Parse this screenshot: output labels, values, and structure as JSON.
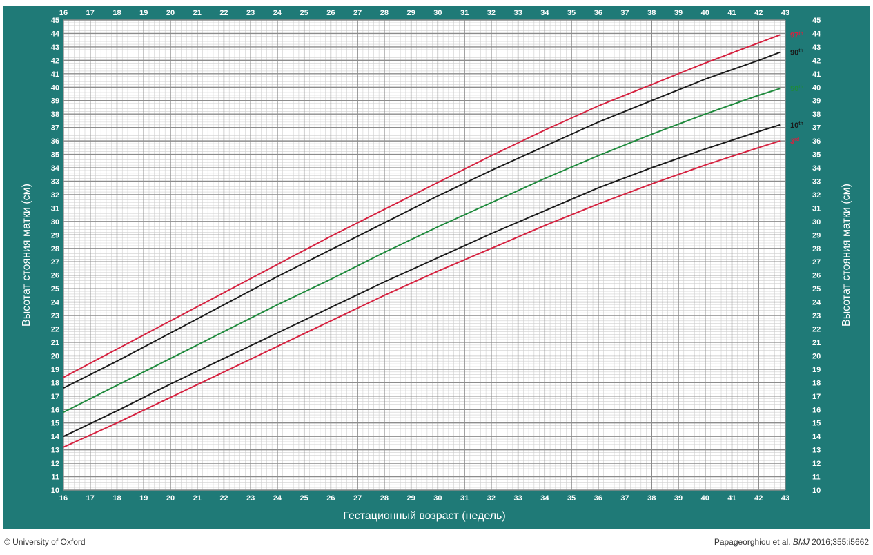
{
  "chart_data": {
    "type": "line",
    "xlabel": "Гестационный возраст (недель)",
    "ylabel": "Высотат стояния матки (см)",
    "xlim": [
      16,
      43
    ],
    "ylim": [
      10,
      45
    ],
    "x_ticks": [
      16,
      17,
      18,
      19,
      20,
      21,
      22,
      23,
      24,
      25,
      26,
      27,
      28,
      29,
      30,
      31,
      32,
      33,
      34,
      35,
      36,
      37,
      38,
      39,
      40,
      41,
      42,
      43
    ],
    "y_ticks": [
      10,
      11,
      12,
      13,
      14,
      15,
      16,
      17,
      18,
      19,
      20,
      21,
      22,
      23,
      24,
      25,
      26,
      27,
      28,
      29,
      30,
      31,
      32,
      33,
      34,
      35,
      36,
      37,
      38,
      39,
      40,
      41,
      42,
      43,
      44,
      45
    ],
    "x": [
      16,
      18,
      20,
      22,
      24,
      26,
      28,
      30,
      32,
      34,
      36,
      38,
      40,
      42,
      42.8
    ],
    "series": [
      {
        "name": "97th",
        "label_main": "97",
        "label_sup": "th",
        "color": "#d6213f",
        "values": [
          18.4,
          20.5,
          22.6,
          24.7,
          26.8,
          28.9,
          30.9,
          32.9,
          34.9,
          36.8,
          38.6,
          40.2,
          41.8,
          43.3,
          43.9
        ]
      },
      {
        "name": "90th",
        "label_main": "90",
        "label_sup": "th",
        "color": "#1a1a1a",
        "values": [
          17.6,
          19.6,
          21.7,
          23.8,
          25.9,
          27.9,
          29.9,
          31.9,
          33.8,
          35.6,
          37.4,
          39.0,
          40.6,
          42.0,
          42.6
        ]
      },
      {
        "name": "50th",
        "label_main": "50",
        "label_sup": "th",
        "color": "#1e8a3c",
        "values": [
          15.8,
          17.8,
          19.8,
          21.8,
          23.8,
          25.7,
          27.7,
          29.6,
          31.4,
          33.2,
          34.9,
          36.5,
          38.0,
          39.4,
          39.9
        ]
      },
      {
        "name": "10th",
        "label_main": "10",
        "label_sup": "th",
        "color": "#1a1a1a",
        "values": [
          14.0,
          15.9,
          17.9,
          19.8,
          21.7,
          23.6,
          25.5,
          27.3,
          29.1,
          30.8,
          32.5,
          34.0,
          35.4,
          36.7,
          37.2
        ]
      },
      {
        "name": "3rd",
        "label_main": "3",
        "label_sup": "rd",
        "color": "#d6213f",
        "values": [
          13.2,
          15.0,
          16.9,
          18.8,
          20.7,
          22.6,
          24.5,
          26.3,
          28.0,
          29.7,
          31.3,
          32.8,
          34.2,
          35.5,
          36.0
        ]
      }
    ]
  },
  "footer": {
    "left": "© University of Oxford",
    "right_authors": "Papageorghiou et al. ",
    "right_journal": "BMJ",
    "right_ref": " 2016;355:i5662"
  },
  "colors": {
    "frame": "#1f7a77",
    "grid_major": "#8c8c8c",
    "grid_minor": "#cfcfcf"
  }
}
